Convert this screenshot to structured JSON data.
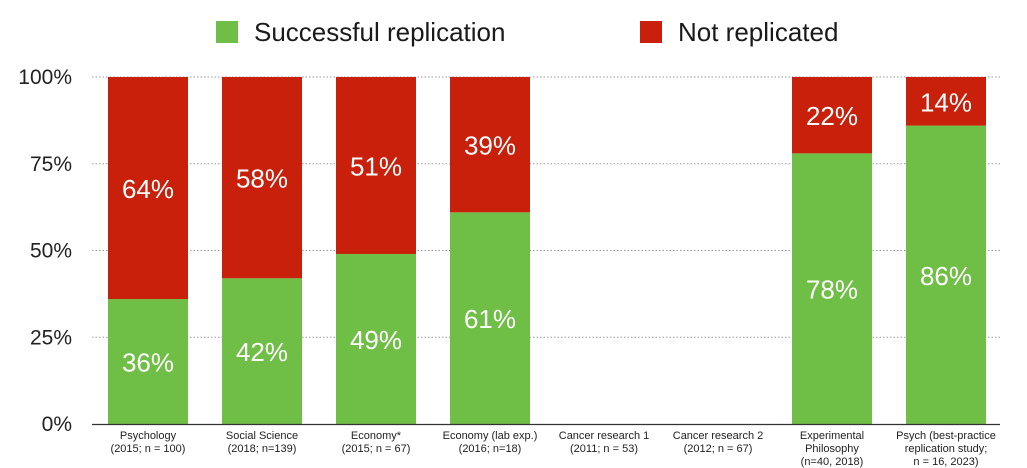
{
  "chart_data": {
    "type": "bar",
    "stacked": true,
    "percent": true,
    "categories": [
      [
        "Psychology",
        "(2015; n = 100)"
      ],
      [
        "Social Science",
        "(2018; n=139)"
      ],
      [
        "Economy*",
        "(2015; n = 67)"
      ],
      [
        "Economy (lab exp.)",
        "(2016; n=18)"
      ],
      [
        "Cancer research 1",
        "(2011; n = 53)"
      ],
      [
        "Cancer research 2",
        "(2012; n = 67)"
      ],
      [
        "Experimental",
        "Philosophy",
        "(n=40, 2018)"
      ],
      [
        "Psych (best-practice",
        "replication study;",
        "n = 16, 2023)"
      ]
    ],
    "series": [
      {
        "name": "Successful replication",
        "color": "#6fbe45",
        "values": [
          36,
          42,
          49,
          61,
          null,
          null,
          78,
          86
        ],
        "labels": [
          "36%",
          "42%",
          "49%",
          "61%",
          "",
          "",
          "78%",
          "86%"
        ]
      },
      {
        "name": "Not replicated",
        "color": "#c8200a",
        "values": [
          64,
          58,
          51,
          39,
          null,
          null,
          22,
          14
        ],
        "labels": [
          "64%",
          "58%",
          "51%",
          "39%",
          "",
          "",
          "22%",
          "14%"
        ]
      }
    ],
    "yticks": [
      "0%",
      "25%",
      "50%",
      "75%",
      "100%"
    ],
    "ylim": [
      0,
      100
    ],
    "grid": true,
    "legend": "top-center"
  }
}
